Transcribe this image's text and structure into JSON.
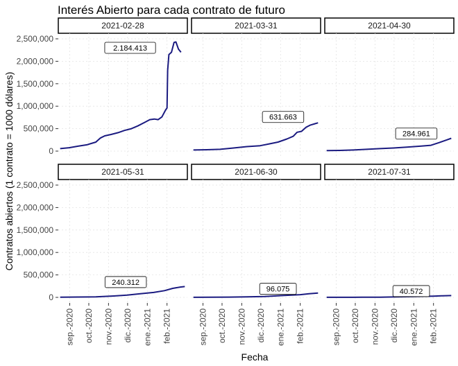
{
  "chart_data": {
    "type": "line",
    "title": "Interés Abierto para cada contrato de futuro",
    "xlabel": "Fecha",
    "ylabel": "Contratos abiertos (1 contrato = 1000 dólares)",
    "ylim": [
      0,
      2500000
    ],
    "y_ticks": [
      0,
      500000,
      1000000,
      1500000,
      2000000,
      2500000
    ],
    "y_tick_labels": [
      "0",
      "500,000",
      "1,000,000",
      "1,500,000",
      "2,000,000",
      "2,500,000"
    ],
    "xlim": [
      "2020-08-14",
      "2021-03-05"
    ],
    "x_ticks": [
      "2020-09-01",
      "2020-10-01",
      "2020-11-01",
      "2020-12-01",
      "2021-01-01",
      "2021-02-01"
    ],
    "x_tick_labels": [
      "sep.-2020",
      "oct.-2020",
      "nov.-2020",
      "dic.-2020",
      "ene.-2021",
      "feb.-2021"
    ],
    "grid": true,
    "line_color": "#1a1a80",
    "panels": [
      {
        "strip": "2021-02-28",
        "label": "2.184.413",
        "label_at": [
          "2020-12-05",
          2300000
        ],
        "series": [
          [
            "2020-08-17",
            55000
          ],
          [
            "2020-08-31",
            75000
          ],
          [
            "2020-09-14",
            110000
          ],
          [
            "2020-09-28",
            140000
          ],
          [
            "2020-10-12",
            200000
          ],
          [
            "2020-10-19",
            290000
          ],
          [
            "2020-10-26",
            340000
          ],
          [
            "2020-11-05",
            370000
          ],
          [
            "2020-11-16",
            410000
          ],
          [
            "2020-11-26",
            460000
          ],
          [
            "2020-12-07",
            500000
          ],
          [
            "2020-12-17",
            560000
          ],
          [
            "2020-12-28",
            640000
          ],
          [
            "2021-01-05",
            700000
          ],
          [
            "2021-01-12",
            715000
          ],
          [
            "2021-01-18",
            700000
          ],
          [
            "2021-01-24",
            760000
          ],
          [
            "2021-01-30",
            920000
          ],
          [
            "2021-02-01",
            960000
          ],
          [
            "2021-02-02",
            1800000
          ],
          [
            "2021-02-04",
            2150000
          ],
          [
            "2021-02-08",
            2200000
          ],
          [
            "2021-02-12",
            2420000
          ],
          [
            "2021-02-15",
            2430000
          ],
          [
            "2021-02-19",
            2270000
          ],
          [
            "2021-02-23",
            2200000
          ]
        ]
      },
      {
        "strip": "2021-03-31",
        "label": "631.663",
        "label_at": [
          "2021-01-05",
          760000
        ],
        "series": [
          [
            "2020-08-17",
            25000
          ],
          [
            "2020-09-07",
            30000
          ],
          [
            "2020-09-28",
            40000
          ],
          [
            "2020-10-19",
            70000
          ],
          [
            "2020-11-09",
            100000
          ],
          [
            "2020-11-30",
            120000
          ],
          [
            "2020-12-14",
            160000
          ],
          [
            "2020-12-28",
            200000
          ],
          [
            "2021-01-11",
            270000
          ],
          [
            "2021-01-21",
            330000
          ],
          [
            "2021-01-27",
            420000
          ],
          [
            "2021-02-03",
            440000
          ],
          [
            "2021-02-10",
            530000
          ],
          [
            "2021-02-17",
            580000
          ],
          [
            "2021-02-24",
            610000
          ],
          [
            "2021-03-01",
            630000
          ]
        ]
      },
      {
        "strip": "2021-04-30",
        "label": "284.961",
        "label_at": [
          "2021-01-05",
          390000
        ],
        "series": [
          [
            "2020-08-17",
            10000
          ],
          [
            "2020-09-07",
            15000
          ],
          [
            "2020-09-28",
            25000
          ],
          [
            "2020-10-19",
            40000
          ],
          [
            "2020-11-09",
            55000
          ],
          [
            "2020-11-30",
            70000
          ],
          [
            "2020-12-21",
            90000
          ],
          [
            "2021-01-11",
            110000
          ],
          [
            "2021-01-28",
            130000
          ],
          [
            "2021-02-10",
            190000
          ],
          [
            "2021-02-22",
            250000
          ],
          [
            "2021-03-01",
            285000
          ]
        ]
      },
      {
        "strip": "2021-05-31",
        "label": "240.312",
        "label_at": [
          "2020-11-28",
          340000
        ],
        "series": [
          [
            "2020-08-17",
            5000
          ],
          [
            "2020-09-14",
            8000
          ],
          [
            "2020-10-12",
            12000
          ],
          [
            "2020-11-09",
            30000
          ],
          [
            "2020-11-30",
            50000
          ],
          [
            "2020-12-21",
            80000
          ],
          [
            "2021-01-11",
            110000
          ],
          [
            "2021-01-28",
            150000
          ],
          [
            "2021-02-10",
            200000
          ],
          [
            "2021-02-22",
            230000
          ],
          [
            "2021-03-01",
            240000
          ]
        ]
      },
      {
        "strip": "2021-06-30",
        "label": "96.075",
        "label_at": [
          "2020-12-28",
          190000
        ],
        "series": [
          [
            "2020-08-17",
            2000
          ],
          [
            "2020-09-14",
            4000
          ],
          [
            "2020-10-12",
            6000
          ],
          [
            "2020-11-09",
            10000
          ],
          [
            "2020-12-07",
            20000
          ],
          [
            "2021-01-04",
            40000
          ],
          [
            "2021-02-01",
            60000
          ],
          [
            "2021-02-15",
            80000
          ],
          [
            "2021-03-01",
            96000
          ]
        ]
      },
      {
        "strip": "2021-07-31",
        "label": "40.572",
        "label_at": [
          "2020-12-28",
          140000
        ],
        "series": [
          [
            "2020-08-17",
            1000
          ],
          [
            "2020-09-14",
            2000
          ],
          [
            "2020-10-12",
            3000
          ],
          [
            "2020-11-09",
            5000
          ],
          [
            "2020-12-07",
            10000
          ],
          [
            "2021-01-04",
            18000
          ],
          [
            "2021-02-01",
            28000
          ],
          [
            "2021-02-15",
            35000
          ],
          [
            "2021-03-01",
            40000
          ]
        ]
      }
    ]
  }
}
